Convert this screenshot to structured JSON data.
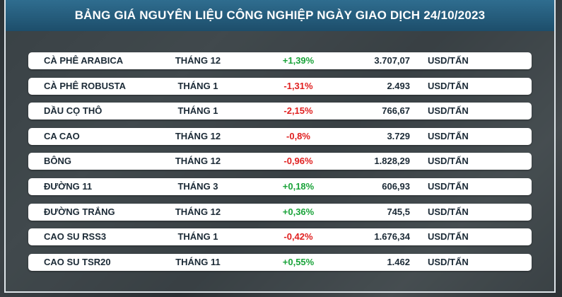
{
  "header": {
    "title": "BẢNG GIÁ NGUYÊN LIỆU CÔNG NGHIỆP NGÀY GIAO DỊCH 24/10/2023"
  },
  "table": {
    "rows": [
      [
        "CÀ PHÊ ARABICA",
        "THÁNG 12",
        "+1,39%",
        "3.707,07",
        "USD/TẤN"
      ],
      [
        "CÀ PHÊ ROBUSTA",
        "THÁNG 1",
        "-1,31%",
        "2.493",
        "USD/TẤN"
      ],
      [
        "DẦU CỌ THÔ",
        "THÁNG 1",
        "-2,15%",
        "766,67",
        "USD/TẤN"
      ],
      [
        "CA CAO",
        "THÁNG 12",
        "-0,8%",
        "3.729",
        "USD/TẤN"
      ],
      [
        "BÔNG",
        "THÁNG 12",
        "-0,96%",
        "1.828,29",
        "USD/TẤN"
      ],
      [
        "ĐƯỜNG 11",
        "THÁNG 3",
        "+0,18%",
        "606,93",
        "USD/TẤN"
      ],
      [
        "ĐƯỜNG TRẮNG",
        "THÁNG 12",
        "+0,36%",
        "745,5",
        "USD/TẤN"
      ],
      [
        "CAO SU RSS3",
        "THÁNG 1",
        "-0,42%",
        "1.676,34",
        "USD/TẤN"
      ],
      [
        "CAO SU TSR20",
        "THÁNG 11",
        "+0,55%",
        "1.462",
        "USD/TẤN"
      ]
    ]
  }
}
